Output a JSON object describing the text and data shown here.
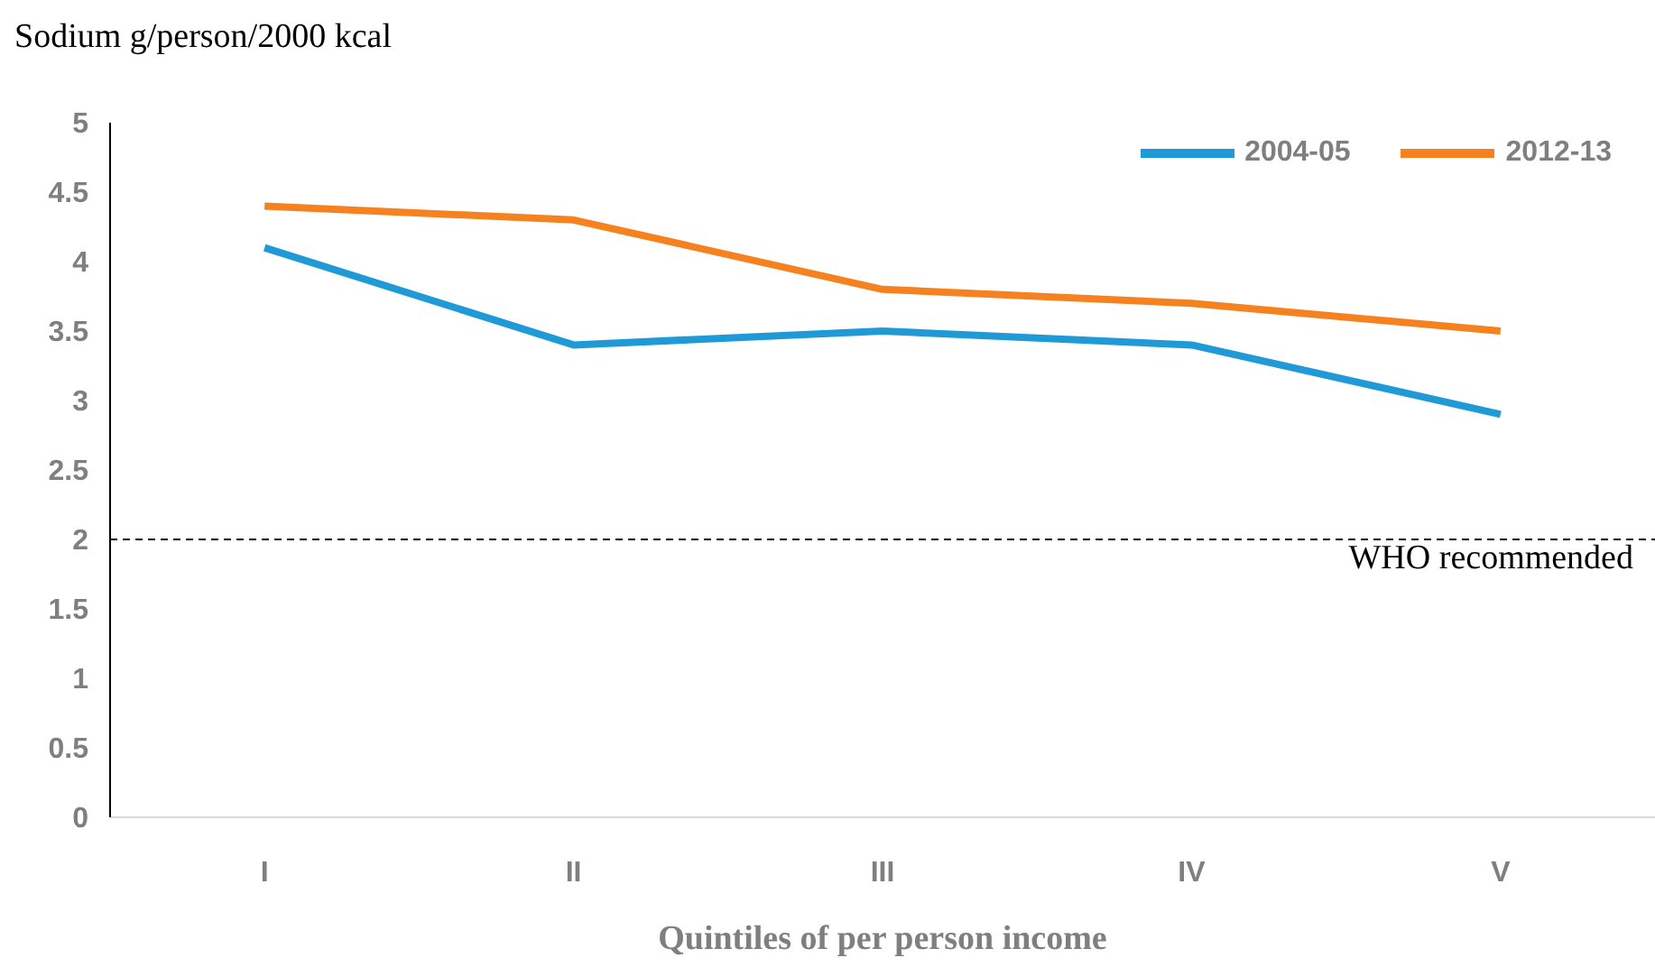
{
  "chart_data": {
    "type": "line",
    "ylabel": "Sodium g/person/2000 kcal",
    "xlabel": "Quintiles of per person income",
    "categories": [
      "I",
      "II",
      "III",
      "IV",
      "V"
    ],
    "series": [
      {
        "name": "2004-05",
        "color": "#1f9ad6",
        "values": [
          4.1,
          3.4,
          3.5,
          3.4,
          2.9
        ]
      },
      {
        "name": "2012-13",
        "color": "#f5821f",
        "values": [
          4.4,
          4.3,
          3.8,
          3.7,
          3.5
        ]
      }
    ],
    "ylim": [
      0,
      5
    ],
    "yticks": [
      0,
      0.5,
      1,
      1.5,
      2,
      2.5,
      3,
      3.5,
      4,
      4.5,
      5
    ],
    "ref_lines": [
      {
        "axis": "y",
        "value": 2,
        "label": "WHO recommended",
        "color": "#000000",
        "line_style": "dashed"
      }
    ],
    "grid": false,
    "legend": "top right",
    "marker": "none",
    "line_style": "solid"
  }
}
